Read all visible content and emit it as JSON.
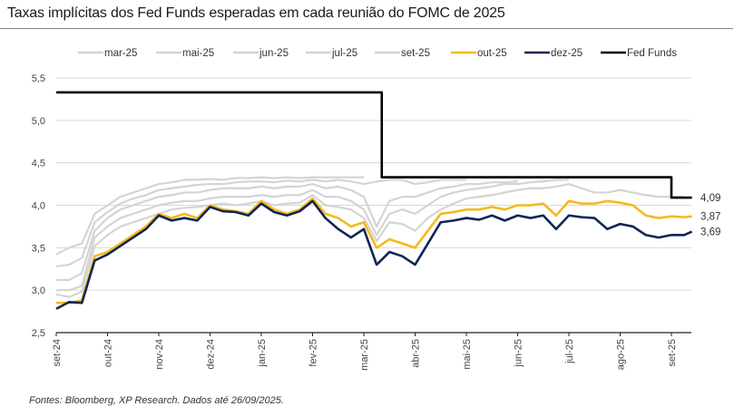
{
  "title": "Taxas implícitas dos Fed Funds esperadas em cada reunião do FOMC de 2025",
  "source": "Fontes: Bloomberg, XP Research. Dados até 26/09/2025.",
  "chart_data": {
    "type": "line",
    "title": "Taxas implícitas dos Fed Funds esperadas em cada reunião do FOMC de 2025",
    "xlabel": "",
    "ylabel": "",
    "ylim": [
      2.5,
      5.5
    ],
    "yticks": [
      "2,5",
      "3,0",
      "3,5",
      "4,0",
      "4,5",
      "5,0",
      "5,5"
    ],
    "ytick_values": [
      2.5,
      3.0,
      3.5,
      4.0,
      4.5,
      5.0,
      5.5
    ],
    "xticks": [
      "set-24",
      "out-24",
      "nov-24",
      "dez-24",
      "jan-25",
      "fev-25",
      "mar-25",
      "abr-25",
      "mai-25",
      "jun-25",
      "jul-25",
      "ago-25",
      "set-25"
    ],
    "xlim_months": [
      0,
      12.4
    ],
    "grid": true,
    "legend_position": "top",
    "end_labels": [
      {
        "series": "Fed Funds",
        "value": "4,09"
      },
      {
        "series": "out-25",
        "value": "3,87"
      },
      {
        "series": "dez-25",
        "value": "3,69"
      }
    ],
    "x": [
      0,
      0.25,
      0.5,
      0.75,
      1.0,
      1.25,
      1.5,
      1.75,
      2.0,
      2.25,
      2.5,
      2.75,
      3.0,
      3.25,
      3.5,
      3.75,
      4.0,
      4.25,
      4.5,
      4.75,
      5.0,
      5.25,
      5.5,
      5.75,
      6.0,
      6.25,
      6.5,
      6.75,
      7.0,
      7.25,
      7.5,
      7.75,
      8.0,
      8.25,
      8.5,
      8.75,
      9.0,
      9.25,
      9.5,
      9.75,
      10.0,
      10.25,
      10.5,
      10.75,
      11.0,
      11.25,
      11.5,
      11.75,
      12.0,
      12.25,
      12.4
    ],
    "series": [
      {
        "name": "mar-25",
        "color": "#d4d4d4",
        "values": [
          3.42,
          3.5,
          3.55,
          3.9,
          4.0,
          4.1,
          4.15,
          4.2,
          4.25,
          4.27,
          4.3,
          4.3,
          4.31,
          4.3,
          4.32,
          4.32,
          4.33,
          4.32,
          4.33,
          4.32,
          4.33,
          4.33,
          4.33,
          4.33,
          4.33,
          null,
          null,
          null,
          null,
          null,
          null,
          null,
          null,
          null,
          null,
          null,
          null,
          null,
          null,
          null,
          null,
          null,
          null,
          null,
          null,
          null,
          null,
          null,
          null,
          null,
          null
        ]
      },
      {
        "name": "mai-25",
        "color": "#d4d4d4",
        "values": [
          3.28,
          3.3,
          3.38,
          3.8,
          3.92,
          4.02,
          4.08,
          4.12,
          4.18,
          4.2,
          4.22,
          4.24,
          4.25,
          4.25,
          4.27,
          4.28,
          4.28,
          4.27,
          4.29,
          4.28,
          4.3,
          4.28,
          4.3,
          4.28,
          4.25,
          4.28,
          4.3,
          4.3,
          4.25,
          4.27,
          4.3,
          4.3,
          4.3,
          null,
          null,
          null,
          null,
          null,
          null,
          null,
          null,
          null,
          null,
          null,
          null,
          null,
          null,
          null,
          null,
          null,
          null
        ]
      },
      {
        "name": "jun-25",
        "color": "#d4d4d4",
        "values": [
          3.12,
          3.12,
          3.2,
          3.7,
          3.85,
          3.95,
          4.0,
          4.05,
          4.1,
          4.12,
          4.15,
          4.15,
          4.18,
          4.2,
          4.2,
          4.2,
          4.22,
          4.2,
          4.22,
          4.22,
          4.25,
          4.2,
          4.22,
          4.18,
          4.1,
          3.75,
          4.05,
          4.1,
          4.1,
          4.15,
          4.2,
          4.22,
          4.25,
          4.25,
          4.27,
          4.27,
          4.28,
          null,
          null,
          null,
          null,
          null,
          null,
          null,
          null,
          null,
          null,
          null,
          null,
          null,
          null
        ]
      },
      {
        "name": "jul-25",
        "color": "#d4d4d4",
        "values": [
          3.0,
          3.0,
          3.05,
          3.62,
          3.75,
          3.85,
          3.9,
          3.95,
          4.0,
          4.03,
          4.05,
          4.05,
          4.08,
          4.1,
          4.1,
          4.1,
          4.12,
          4.1,
          4.12,
          4.12,
          4.18,
          4.1,
          4.1,
          4.05,
          3.95,
          3.65,
          3.9,
          3.95,
          3.9,
          4.0,
          4.1,
          4.15,
          4.18,
          4.2,
          4.22,
          4.25,
          4.25,
          4.27,
          4.28,
          4.3,
          4.3,
          null,
          null,
          null,
          null,
          null,
          null,
          null,
          null,
          null,
          null
        ]
      },
      {
        "name": "set-25",
        "color": "#d4d4d4",
        "values": [
          2.95,
          2.92,
          2.98,
          3.52,
          3.65,
          3.75,
          3.8,
          3.85,
          3.9,
          3.95,
          3.97,
          3.98,
          4.0,
          4.02,
          4.0,
          4.02,
          4.05,
          4.0,
          4.02,
          4.03,
          4.12,
          4.0,
          3.98,
          3.95,
          3.85,
          3.58,
          3.8,
          3.78,
          3.7,
          3.85,
          3.95,
          4.02,
          4.08,
          4.1,
          4.12,
          4.15,
          4.18,
          4.2,
          4.2,
          4.22,
          4.25,
          4.2,
          4.15,
          4.15,
          4.18,
          4.15,
          4.12,
          4.1,
          4.1,
          4.1,
          null
        ]
      },
      {
        "name": "out-25",
        "color": "#f5b91a",
        "values": [
          2.85,
          2.85,
          2.88,
          3.4,
          3.45,
          3.55,
          3.65,
          3.75,
          3.9,
          3.85,
          3.9,
          3.85,
          4.0,
          3.95,
          3.93,
          3.9,
          4.05,
          3.95,
          3.9,
          3.95,
          4.08,
          3.9,
          3.85,
          3.75,
          3.8,
          3.5,
          3.6,
          3.55,
          3.5,
          3.7,
          3.9,
          3.92,
          3.95,
          3.95,
          3.98,
          3.95,
          4.0,
          4.0,
          4.02,
          3.88,
          4.05,
          4.02,
          4.02,
          4.05,
          4.03,
          4.0,
          3.88,
          3.85,
          3.87,
          3.86,
          3.87
        ]
      },
      {
        "name": "dez-25",
        "color": "#0e2654",
        "values": [
          2.78,
          2.86,
          2.85,
          3.35,
          3.42,
          3.52,
          3.62,
          3.72,
          3.88,
          3.82,
          3.85,
          3.82,
          3.98,
          3.93,
          3.92,
          3.88,
          4.02,
          3.92,
          3.88,
          3.93,
          4.05,
          3.85,
          3.72,
          3.62,
          3.72,
          3.3,
          3.45,
          3.4,
          3.3,
          3.55,
          3.8,
          3.82,
          3.85,
          3.83,
          3.88,
          3.82,
          3.88,
          3.85,
          3.88,
          3.72,
          3.88,
          3.86,
          3.85,
          3.72,
          3.78,
          3.75,
          3.65,
          3.62,
          3.65,
          3.65,
          3.69
        ]
      },
      {
        "name": "Fed Funds",
        "color": "#000000",
        "step_values": [
          [
            0,
            5.33
          ],
          [
            6.35,
            5.33
          ],
          [
            6.35,
            4.33
          ],
          [
            12.0,
            4.33
          ],
          [
            12.0,
            4.09
          ],
          [
            12.4,
            4.09
          ]
        ]
      }
    ]
  }
}
